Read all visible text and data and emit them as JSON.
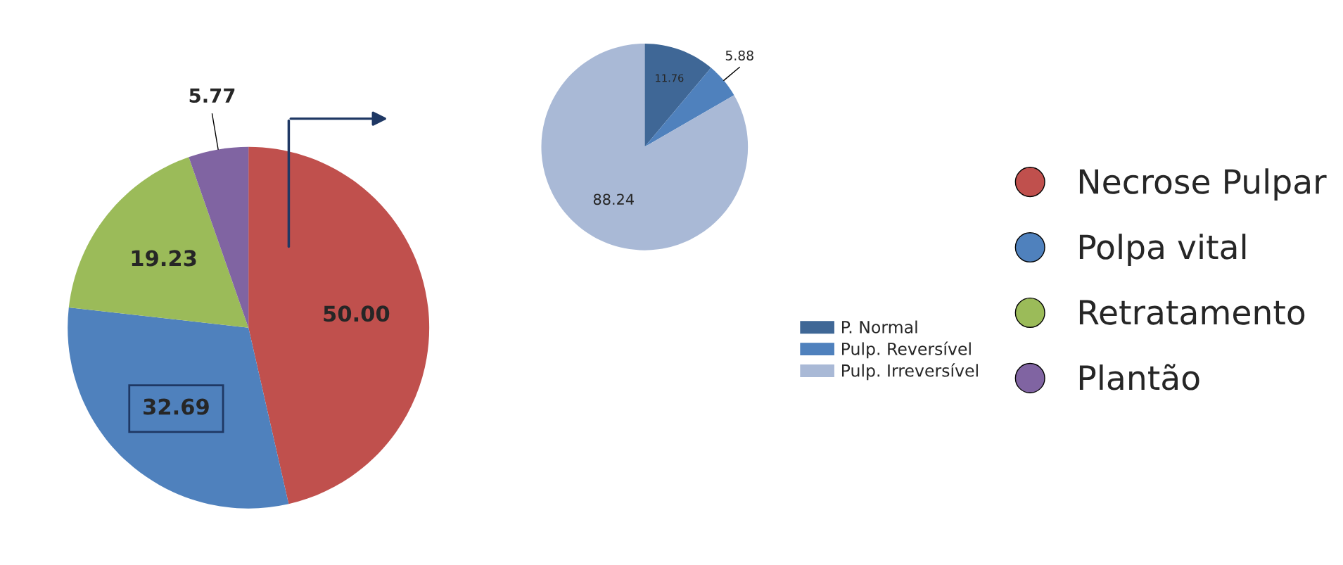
{
  "chart_data": [
    {
      "type": "pie",
      "categories": [
        "Necrose Pulpar",
        "Polpa vital",
        "Retratamento",
        "Plantão"
      ],
      "values": [
        50.0,
        32.69,
        19.23,
        5.77
      ],
      "value_labels": [
        "50.00",
        "32.69",
        "19.23",
        "5.77"
      ],
      "colors": [
        "#c0504d",
        "#4f81bd",
        "#9bbb59",
        "#8064a2"
      ],
      "legend": "right"
    },
    {
      "type": "pie",
      "categories": [
        "P. Normal",
        "Pulp. Reversível",
        "Pulp. Irreversível"
      ],
      "values": [
        11.76,
        5.88,
        88.24
      ],
      "value_labels": [
        "11.76",
        "5.88",
        "88.24"
      ],
      "colors": [
        "#3f6796",
        "#4f81bd",
        "#a9b9d6"
      ],
      "legend": "bottom right"
    }
  ]
}
